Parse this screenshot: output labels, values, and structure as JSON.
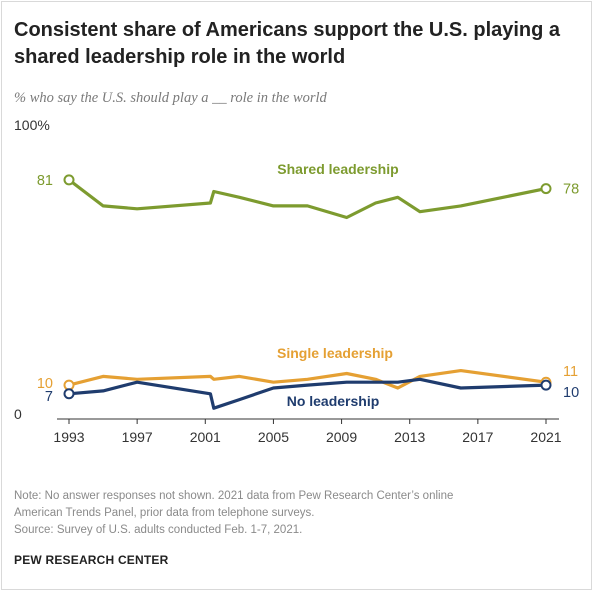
{
  "title": "Consistent share of Americans support the U.S. playing a shared leadership role in the world",
  "subtitle": "% who say the U.S. should play a __ role in the world",
  "note_lines": [
    "Note: No answer responses not shown. 2021 data from Pew Research Center’s online",
    "American Trends Panel, prior data from telephone surveys.",
    "Source: Survey of U.S. adults conducted Feb. 1-7, 2021."
  ],
  "org": "PEW RESEARCH CENTER",
  "chart_data": {
    "type": "line",
    "title": "Consistent share of Americans support the U.S. playing a shared leadership role in the world",
    "subtitle": "% who say the U.S. should play a __ role in the world",
    "xlabel": "",
    "ylabel": "",
    "ylim": [
      0,
      100
    ],
    "xlim": [
      1993,
      2021
    ],
    "y_tick_labels": [
      "100%",
      "0"
    ],
    "x_ticks": [
      1993,
      1997,
      2001,
      2005,
      2009,
      2013,
      2017,
      2021
    ],
    "grid": false,
    "legend": "direct labels on lines",
    "series": [
      {
        "name": "Shared leadership",
        "color": "#7d9b2f",
        "x": [
          1993,
          1995,
          1997,
          2001.3,
          2001.5,
          2003,
          2005,
          2007,
          2009.3,
          2011,
          2012.3,
          2013.6,
          2016,
          2021
        ],
        "y": [
          81,
          72,
          71,
          73,
          77,
          75,
          72,
          72,
          68,
          73,
          75,
          70,
          72,
          78
        ],
        "start_label": "81",
        "end_label": "78"
      },
      {
        "name": "Single leadership",
        "color": "#e5a033",
        "x": [
          1993,
          1995,
          1997,
          2001.3,
          2001.5,
          2003,
          2005,
          2007,
          2009.3,
          2011,
          2012.3,
          2013.6,
          2016,
          2021
        ],
        "y": [
          10,
          13,
          12,
          13,
          12,
          13,
          11,
          12,
          14,
          12,
          9,
          13,
          15,
          11
        ],
        "start_label": "10",
        "end_label": "11"
      },
      {
        "name": "No leadership",
        "color": "#1f3c6e",
        "x": [
          1993,
          1995,
          1997,
          2001.3,
          2001.5,
          2003,
          2005,
          2007,
          2009.3,
          2011,
          2012.3,
          2013.6,
          2016,
          2021
        ],
        "y": [
          7,
          8,
          11,
          7,
          2,
          5,
          9,
          10,
          11,
          11,
          11,
          12,
          9,
          10
        ],
        "start_label": "7",
        "end_label": "10"
      }
    ]
  }
}
